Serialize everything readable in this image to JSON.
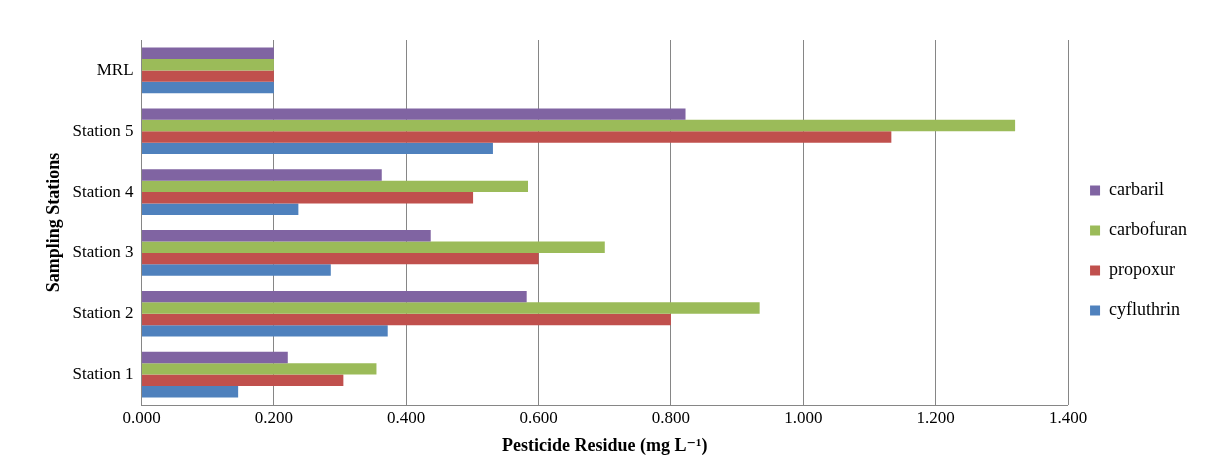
{
  "chart_data": {
    "type": "bar",
    "orientation": "horizontal",
    "xlabel": "Pesticide Residue (mg L⁻¹)",
    "ylabel": "Sampling Stations",
    "categories": [
      "MRL",
      "Station 5",
      "Station 4",
      "Station 3",
      "Station 2",
      "Station 1"
    ],
    "series": [
      {
        "name": "carbaril",
        "color": "#8064a2",
        "values": [
          0.2,
          0.822,
          0.363,
          0.437,
          0.582,
          0.221
        ]
      },
      {
        "name": "carbofuran",
        "color": "#9bbb59",
        "values": [
          0.2,
          1.32,
          0.584,
          0.7,
          0.934,
          0.355
        ]
      },
      {
        "name": "propoxur",
        "color": "#c0504d",
        "values": [
          0.2,
          1.133,
          0.501,
          0.6,
          0.8,
          0.305
        ]
      },
      {
        "name": "cyfluthrin",
        "color": "#4f81bd",
        "values": [
          0.2,
          0.531,
          0.237,
          0.286,
          0.372,
          0.146
        ]
      }
    ],
    "xlim": [
      0,
      1.4
    ],
    "xticks": [
      {
        "value": 0,
        "label": "0.000"
      },
      {
        "value": 0.2,
        "label": "0.200"
      },
      {
        "value": 0.4,
        "label": "0.400"
      },
      {
        "value": 0.6,
        "label": "0.600"
      },
      {
        "value": 0.8,
        "label": "0.800"
      },
      {
        "value": 1,
        "label": "1.000"
      },
      {
        "value": 1.2,
        "label": "1.200"
      },
      {
        "value": 1.4,
        "label": "1.400"
      }
    ],
    "grid": "x",
    "legend": "right"
  }
}
